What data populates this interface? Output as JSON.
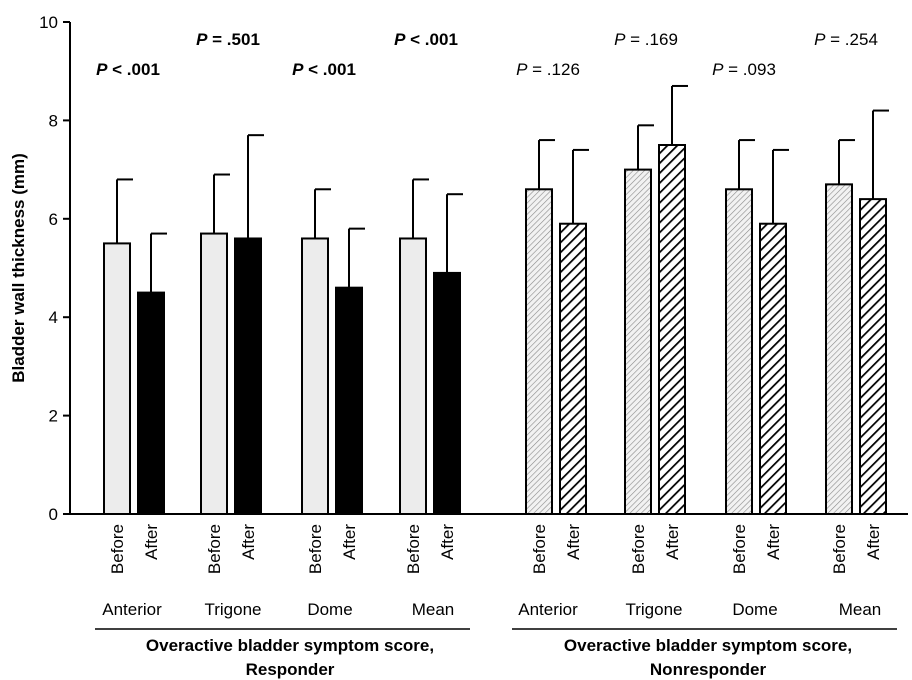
{
  "chart_data": {
    "type": "bar",
    "ylabel": "Bladder wall thickness (mm)",
    "ylim": [
      0,
      10
    ],
    "yticks": [
      "0",
      "2",
      "4",
      "6",
      "8",
      "10"
    ],
    "grid": false,
    "groups": [
      {
        "label": "Overactive bladder symptom score,\nResponder",
        "label_lines": [
          "Overactive bladder symptom score,",
          "Responder"
        ],
        "fill_before": "#ececec",
        "fill_after": "#000000",
        "pattern": "solid",
        "categories": [
          {
            "name": "Anterior",
            "p_prefix": "P",
            "p_text": " < .001",
            "p_bold": true,
            "before": 5.5,
            "before_err": 6.8,
            "after": 4.5,
            "after_err": 5.7
          },
          {
            "name": "Trigone",
            "p_prefix": "P",
            "p_text": " = .501",
            "p_bold": true,
            "before": 5.7,
            "before_err": 6.9,
            "after": 5.6,
            "after_err": 7.7
          },
          {
            "name": "Dome",
            "p_prefix": "P",
            "p_text": " < .001",
            "p_bold": true,
            "before": 5.6,
            "before_err": 6.6,
            "after": 4.6,
            "after_err": 5.8
          },
          {
            "name": "Mean",
            "p_prefix": "P",
            "p_text": " < .001",
            "p_bold": true,
            "before": 5.6,
            "before_err": 6.8,
            "after": 4.9,
            "after_err": 6.5
          }
        ]
      },
      {
        "label": "Overactive bladder symptom score,\nNonresponder",
        "label_lines": [
          "Overactive bladder symptom score,",
          "Nonresponder"
        ],
        "fill_before": "#d0d0d0",
        "fill_after": "#000000",
        "pattern": "hatched",
        "categories": [
          {
            "name": "Anterior",
            "p_prefix": "P",
            "p_text": " = .126",
            "p_bold": false,
            "before": 6.6,
            "before_err": 7.6,
            "after": 5.9,
            "after_err": 7.4
          },
          {
            "name": "Trigone",
            "p_prefix": "P",
            "p_text": " = .169",
            "p_bold": false,
            "before": 7.0,
            "before_err": 7.9,
            "after": 7.5,
            "after_err": 8.7
          },
          {
            "name": "Dome",
            "p_prefix": "P",
            "p_text": " = .093",
            "p_bold": false,
            "before": 6.6,
            "before_err": 7.6,
            "after": 5.9,
            "after_err": 7.4
          },
          {
            "name": "Mean",
            "p_prefix": "P",
            "p_text": " = .254",
            "p_bold": false,
            "before": 6.7,
            "before_err": 7.6,
            "after": 6.4,
            "after_err": 8.2
          }
        ]
      }
    ],
    "bar_labels": {
      "before": "Before",
      "after": "After"
    }
  }
}
